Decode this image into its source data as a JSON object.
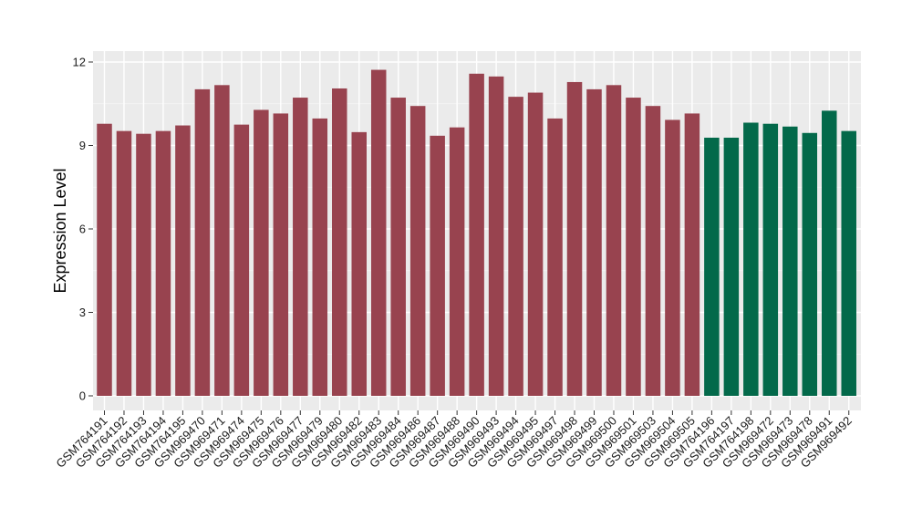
{
  "chart_data": {
    "type": "bar",
    "title": "",
    "xlabel": "",
    "ylabel": "Expression Level",
    "ylim": [
      0,
      12
    ],
    "yticks": [
      0,
      3,
      6,
      9,
      12
    ],
    "grid": true,
    "panel_background": "#ebebeb",
    "colors": {
      "group_a": "#98434f",
      "group_b": "#03694a"
    },
    "categories": [
      "GSM764191",
      "GSM764192",
      "GSM764193",
      "GSM764194",
      "GSM764195",
      "GSM969470",
      "GSM969471",
      "GSM969474",
      "GSM969475",
      "GSM969476",
      "GSM969477",
      "GSM969479",
      "GSM969480",
      "GSM969482",
      "GSM969483",
      "GSM969484",
      "GSM969486",
      "GSM969487",
      "GSM969488",
      "GSM969490",
      "GSM969493",
      "GSM969494",
      "GSM969495",
      "GSM969497",
      "GSM969498",
      "GSM969499",
      "GSM969500",
      "GSM969501",
      "GSM969503",
      "GSM969504",
      "GSM969505",
      "GSM764196",
      "GSM764197",
      "GSM764198",
      "GSM969472",
      "GSM969473",
      "GSM969478",
      "GSM969491",
      "GSM969492"
    ],
    "values": [
      9.78,
      9.52,
      9.42,
      9.52,
      9.72,
      11.02,
      11.17,
      9.75,
      10.28,
      10.15,
      10.72,
      9.97,
      11.05,
      9.48,
      11.72,
      10.72,
      10.42,
      9.35,
      9.65,
      11.58,
      11.48,
      10.75,
      10.9,
      9.97,
      11.28,
      11.02,
      11.17,
      10.72,
      10.42,
      9.92,
      10.15,
      9.28,
      9.28,
      9.82,
      9.78,
      9.68,
      9.45,
      10.25,
      9.52
    ],
    "groups": [
      "a",
      "a",
      "a",
      "a",
      "a",
      "a",
      "a",
      "a",
      "a",
      "a",
      "a",
      "a",
      "a",
      "a",
      "a",
      "a",
      "a",
      "a",
      "a",
      "a",
      "a",
      "a",
      "a",
      "a",
      "a",
      "a",
      "a",
      "a",
      "a",
      "a",
      "a",
      "b",
      "b",
      "b",
      "b",
      "b",
      "b",
      "b",
      "b"
    ]
  }
}
